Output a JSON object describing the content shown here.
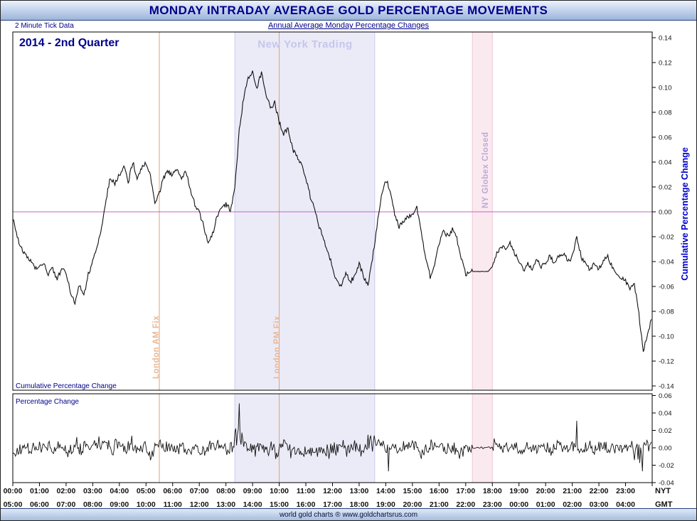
{
  "header": {
    "title": "MONDAY INTRADAY AVERAGE GOLD PERCENTAGE MOVEMENTS"
  },
  "subheader": {
    "left": "2 Minute Tick Data",
    "center": "Annual Average Monday Percentage Changes"
  },
  "labels": {
    "period": "2014 - 2nd Quarter",
    "ny_trading": "New York Trading",
    "london_am": "London AM Fix",
    "london_pm": "London PM Fix",
    "globex": "NY Globex Closed",
    "cumulative_panel": "Cumulative Percentage Change",
    "pct_panel": "Percentage Change",
    "right_axis": "Cumulative Percentage Change",
    "nyt": "NYT",
    "gmt": "GMT"
  },
  "footer": {
    "text": "world gold charts ® www.goldchartsrus.com"
  },
  "colors": {
    "accent_navy": "#00008b",
    "axis_blue": "#0000cc",
    "line": "#111111",
    "zero_line": "#c85fc8",
    "band_ny": "#ebebf8",
    "band_ny_edge": "#c7cbf0",
    "band_globex": "#fbe9f0",
    "band_globex_edge": "#eec6d8",
    "fix_line": "#e4a070",
    "label_ny": "#c6c6ec",
    "label_fix": "#eab896",
    "label_globex": "#bda9da"
  },
  "chart_data": [
    {
      "type": "line",
      "panel": "cumulative",
      "title": "Cumulative Percentage Change",
      "x_start_nyt": "00:00",
      "x_step_minutes": 10,
      "values": [
        -0.005,
        -0.02,
        -0.03,
        -0.035,
        -0.04,
        -0.045,
        -0.045,
        -0.042,
        -0.05,
        -0.046,
        -0.055,
        -0.045,
        -0.05,
        -0.065,
        -0.073,
        -0.058,
        -0.068,
        -0.05,
        -0.04,
        -0.028,
        -0.012,
        0.01,
        0.028,
        0.022,
        0.03,
        0.037,
        0.024,
        0.04,
        0.028,
        0.035,
        0.04,
        0.028,
        0.008,
        0.015,
        0.028,
        0.032,
        0.03,
        0.034,
        0.027,
        0.032,
        0.018,
        0.006,
        0,
        -0.012,
        -0.026,
        -0.018,
        -0.004,
        0.004,
        0.006,
        0.002,
        0.018,
        0.065,
        0.092,
        0.108,
        0.113,
        0.1,
        0.112,
        0.096,
        0.083,
        0.088,
        0.072,
        0.062,
        0.068,
        0.05,
        0.044,
        0.038,
        0.028,
        0.012,
        0.002,
        -0.012,
        -0.022,
        -0.032,
        -0.045,
        -0.057,
        -0.06,
        -0.048,
        -0.056,
        -0.052,
        -0.042,
        -0.052,
        -0.06,
        -0.038,
        -0.012,
        0.012,
        0.026,
        0.018,
        -0.002,
        -0.012,
        -0.008,
        -0.004,
        -0.002,
        0.003,
        -0.018,
        -0.038,
        -0.052,
        -0.044,
        -0.026,
        -0.016,
        -0.02,
        -0.014,
        -0.022,
        -0.038,
        -0.05,
        -0.048,
        -0.048,
        -0.048,
        -0.048,
        -0.048,
        -0.044,
        -0.034,
        -0.027,
        -0.03,
        -0.025,
        -0.033,
        -0.041,
        -0.047,
        -0.042,
        -0.046,
        -0.038,
        -0.044,
        -0.04,
        -0.035,
        -0.042,
        -0.036,
        -0.033,
        -0.04,
        -0.036,
        -0.021,
        -0.036,
        -0.042,
        -0.047,
        -0.042,
        -0.046,
        -0.039,
        -0.036,
        -0.044,
        -0.05,
        -0.052,
        -0.056,
        -0.062,
        -0.058,
        -0.082,
        -0.112,
        -0.098
      ],
      "ylim": [
        -0.145,
        0.145
      ],
      "yticks": [
        0.14,
        0.12,
        0.1,
        0.08,
        0.06,
        0.04,
        0.02,
        0,
        -0.02,
        -0.04,
        -0.06,
        -0.08,
        -0.1,
        -0.12,
        -0.14
      ],
      "zero_line": 0,
      "x_hours_nyt": [
        "00:00",
        "01:00",
        "02:00",
        "03:00",
        "04:00",
        "05:00",
        "06:00",
        "07:00",
        "08:00",
        "09:00",
        "10:00",
        "11:00",
        "12:00",
        "13:00",
        "14:00",
        "15:00",
        "16:00",
        "17:00",
        "18:00",
        "19:00",
        "20:00",
        "21:00",
        "22:00",
        "23:00"
      ],
      "x_hours_gmt": [
        "05:00",
        "06:00",
        "07:00",
        "08:00",
        "09:00",
        "10:00",
        "11:00",
        "12:00",
        "13:00",
        "14:00",
        "15:00",
        "16:00",
        "17:00",
        "18:00",
        "19:00",
        "20:00",
        "21:00",
        "22:00",
        "23:00",
        "00:00",
        "01:00",
        "02:00",
        "03:00",
        "04:00"
      ],
      "regions": [
        {
          "label": "New York Trading",
          "start": "08:20",
          "end": "13:35"
        },
        {
          "label": "NY Globex Closed",
          "start": "17:15",
          "end": "18:00"
        }
      ],
      "vlines": [
        {
          "label": "London AM Fix",
          "time": "05:30"
        },
        {
          "label": "London PM Fix",
          "time": "10:00"
        }
      ]
    },
    {
      "type": "line",
      "panel": "percentage-change",
      "title": "Percentage Change",
      "ylim": [
        -0.045,
        0.062
      ],
      "yticks": [
        0.06,
        0.04,
        0.02,
        0,
        -0.02,
        -0.04
      ],
      "description": "2-minute percentage changes; mean-zero noise roughly ±0.01 derived as first differences of the cumulative series, with larger spikes at key times",
      "spikes": [
        {
          "time": "08:30",
          "value": 0.051
        },
        {
          "time": "14:05",
          "value": -0.027
        },
        {
          "time": "21:10",
          "value": 0.031
        },
        {
          "time": "23:38",
          "value": -0.027
        }
      ]
    }
  ]
}
